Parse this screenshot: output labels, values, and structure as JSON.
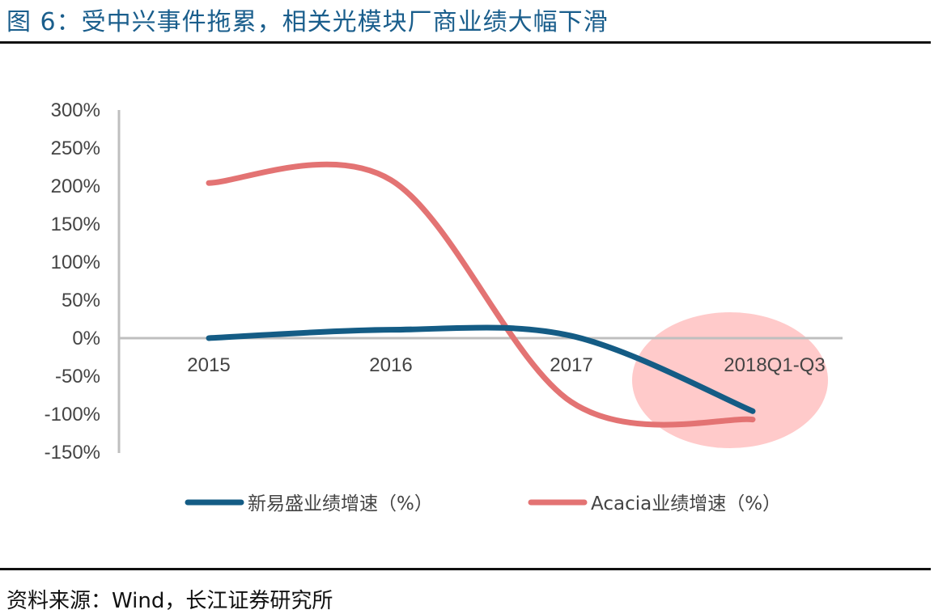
{
  "title": "图 6：受中兴事件拖累，相关光模块厂商业绩大幅下滑",
  "source": "资料来源：Wind，长江证券研究所",
  "chart_data": {
    "type": "line",
    "smooth": true,
    "categories": [
      "2015",
      "2016",
      "2017",
      "2018Q1-Q3"
    ],
    "ylim": [
      -150,
      300
    ],
    "yticks": [
      300,
      250,
      200,
      150,
      100,
      50,
      0,
      -50,
      -100,
      -150
    ],
    "ytick_labels": [
      "300%",
      "250%",
      "200%",
      "150%",
      "100%",
      "50%",
      "0%",
      "-50%",
      "-100%",
      "-150%"
    ],
    "grid": false,
    "legend": "bottom",
    "series": [
      {
        "name": "新易盛业绩增速（%）",
        "values": [
          0,
          11,
          3,
          -96
        ],
        "color": "#145c85"
      },
      {
        "name": "Acacia业绩增速（%）",
        "values": [
          204,
          208,
          -84,
          -107
        ],
        "color": "#e37373"
      }
    ],
    "highlight": {
      "category": "2018Q1-Q3",
      "color": "#ffb3b3"
    }
  }
}
